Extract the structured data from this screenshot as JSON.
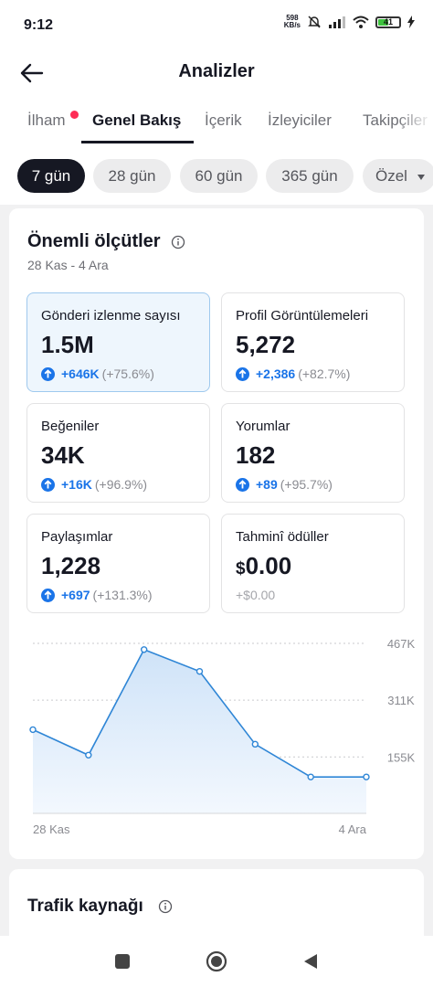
{
  "status": {
    "time": "9:12",
    "net_speed": [
      "598",
      "KB/s"
    ],
    "battery": "41"
  },
  "header": {
    "title": "Analizler",
    "back_icon": "arrow-left-icon"
  },
  "tabs": [
    {
      "label": "İlham",
      "active": false,
      "badge": true
    },
    {
      "label": "Genel Bakış",
      "active": true
    },
    {
      "label": "İçerik",
      "active": false
    },
    {
      "label": "İzleyiciler",
      "active": false
    },
    {
      "label": "Takipçiler",
      "active": false
    }
  ],
  "range_chips": [
    {
      "label": "7 gün",
      "active": true
    },
    {
      "label": "28 gün"
    },
    {
      "label": "60 gün"
    },
    {
      "label": "365 gün"
    },
    {
      "label": "Özel"
    }
  ],
  "metrics_section": {
    "title": "Önemli ölçütler",
    "date_range": "28 Kas - 4 Ara",
    "metrics": [
      {
        "label": "Gönderi izlenme sayısı",
        "value": "1.5M",
        "delta": "+646K",
        "pct": "(+75.6%)",
        "selected": true
      },
      {
        "label": "Profil Görüntülemeleri",
        "value": "5,272",
        "delta": "+2,386",
        "pct": "(+82.7%)"
      },
      {
        "label": "Beğeniler",
        "value": "34K",
        "delta": "+16K",
        "pct": "(+96.9%)"
      },
      {
        "label": "Yorumlar",
        "value": "182",
        "delta": "+89",
        "pct": "(+95.7%)"
      },
      {
        "label": "Paylaşımlar",
        "value": "1,228",
        "delta": "+697",
        "pct": "(+131.3%)"
      },
      {
        "label": "Tahminî ödüller",
        "value_prefix": "$",
        "value": "0.00",
        "change": "+$0.00"
      }
    ]
  },
  "chart_data": {
    "type": "area",
    "values": [
      230000,
      160000,
      450000,
      390000,
      190000,
      100000,
      100000
    ],
    "x_labels": [
      "28 Kas",
      "4 Ara"
    ],
    "y_ticks": [
      {
        "value": 467000,
        "label": "467K"
      },
      {
        "value": 311000,
        "label": "311K"
      },
      {
        "value": 155000,
        "label": "155K"
      }
    ],
    "ylim": [
      0,
      467000
    ],
    "line_color": "#2f86d6",
    "fill_color": "#d2e6f9",
    "grid": true
  },
  "traffic_section": {
    "title": "Trafik kaynağı"
  },
  "nav": {
    "icons": [
      "square-icon",
      "home-circle-icon",
      "back-triangle-icon"
    ]
  },
  "colors": {
    "accent": "#1a74e8",
    "badge": "#fe2c55",
    "text": "#161823"
  }
}
